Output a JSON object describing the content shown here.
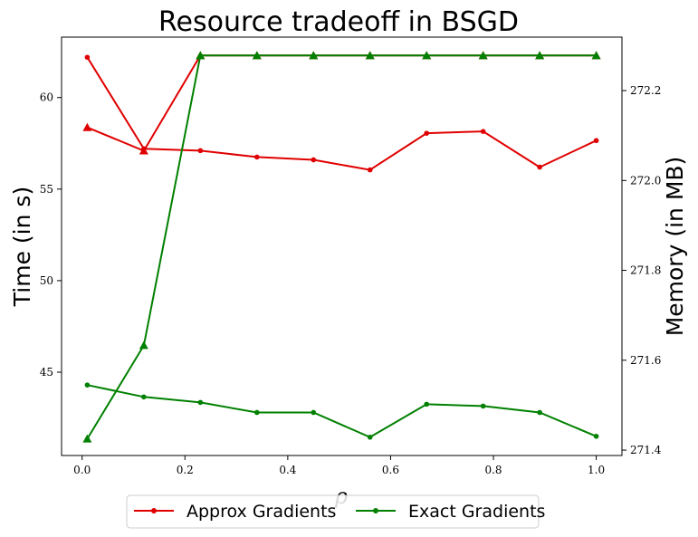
{
  "chart_data": {
    "type": "line",
    "title": "Resource tradeoff in BSGD",
    "xlabel": "ρ",
    "ylabel_left": "Time (in s)",
    "ylabel_right": "Memory (in MB)",
    "x": [
      0.01,
      0.12,
      0.23,
      0.34,
      0.45,
      0.56,
      0.67,
      0.78,
      0.89,
      1.0
    ],
    "xlim": [
      -0.04,
      1.05
    ],
    "xticks": [
      "0.0",
      "0.2",
      "0.4",
      "0.6",
      "0.8",
      "1.0"
    ],
    "ylim_left": [
      40.45,
      63.3
    ],
    "yticks_left": [
      "45",
      "50",
      "55",
      "60"
    ],
    "ylim_right": [
      271.388,
      272.319
    ],
    "yticks_right": [
      "271.4",
      "271.6",
      "271.8",
      "272.0",
      "272.2"
    ],
    "grid": false,
    "legend": {
      "placement": "bottom-center",
      "entries": [
        "Approx Gradients",
        "Exact Gradients"
      ]
    },
    "series": [
      {
        "name": "Approx Gradients",
        "metric": "time",
        "axis": "left",
        "marker": "circle",
        "color": "#e00000",
        "values": [
          62.2,
          57.2,
          57.1,
          56.75,
          56.6,
          56.05,
          58.05,
          58.15,
          56.2,
          57.65
        ]
      },
      {
        "name": "Approx Gradients",
        "metric": "memory",
        "axis": "right",
        "marker": "triangle",
        "color": "#e00000",
        "values": [
          272.118,
          272.066,
          272.278,
          272.278,
          272.278,
          272.278,
          272.278,
          272.278,
          272.278,
          272.278
        ]
      },
      {
        "name": "Exact Gradients",
        "metric": "time",
        "axis": "left",
        "marker": "circle",
        "color": "#008000",
        "values": [
          44.3,
          43.65,
          43.35,
          42.8,
          42.8,
          41.45,
          43.25,
          43.15,
          42.8,
          41.5
        ]
      },
      {
        "name": "Exact Gradients",
        "metric": "memory",
        "axis": "right",
        "marker": "triangle",
        "color": "#008000",
        "values": [
          271.425,
          271.633,
          272.278,
          272.278,
          272.278,
          272.278,
          272.278,
          272.278,
          272.278,
          272.278
        ]
      }
    ]
  }
}
